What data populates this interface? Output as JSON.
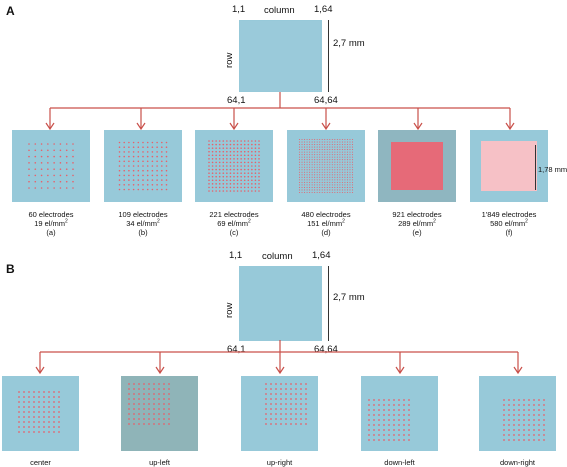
{
  "panel_a": {
    "letter": "A",
    "corner_top_left": "1,1",
    "column_label": "column",
    "corner_top_right": "1,64",
    "row_label": "row",
    "scale_label": "2,7 mm",
    "corner_bottom_left": "64,1",
    "corner_bottom_right": "64,64",
    "inner_scale_label": "1,78 mm",
    "items": [
      {
        "count": "60 electrodes",
        "density": "19 el/mm",
        "letter": "(a)",
        "grid": 8
      },
      {
        "count": "109 electrodes",
        "density": "34 el/mm",
        "letter": "(b)",
        "grid": 11
      },
      {
        "count": "221 electrodes",
        "density": "69 el/mm",
        "letter": "(c)",
        "grid": 15
      },
      {
        "count": "480 electrodes",
        "density": "151 el/mm",
        "letter": "(d)",
        "grid": 22
      },
      {
        "count": "921 electrodes",
        "density": "289 el/mm",
        "letter": "(e)",
        "grid": 30
      },
      {
        "count": "1'849 electrodes",
        "density": "580 el/mm",
        "letter": "(f)",
        "grid": 43
      }
    ]
  },
  "panel_b": {
    "letter": "B",
    "corner_top_left": "1,1",
    "column_label": "column",
    "corner_top_right": "1,64",
    "row_label": "row",
    "scale_label": "2,7 mm",
    "corner_bottom_left": "64,1",
    "corner_bottom_right": "64,64",
    "items": [
      {
        "label": "center"
      },
      {
        "label": "up-left"
      },
      {
        "label": "up-right"
      },
      {
        "label": "down-left"
      },
      {
        "label": "down-right"
      }
    ]
  },
  "density_unit_superscript": "2",
  "colors": {
    "square": "#97c9d9",
    "arrow": "#c9504a",
    "dot": "#e8606a",
    "dense": "#e66a78",
    "dense_bg": "#8fb6c0",
    "pink": "#f6c1c6"
  }
}
